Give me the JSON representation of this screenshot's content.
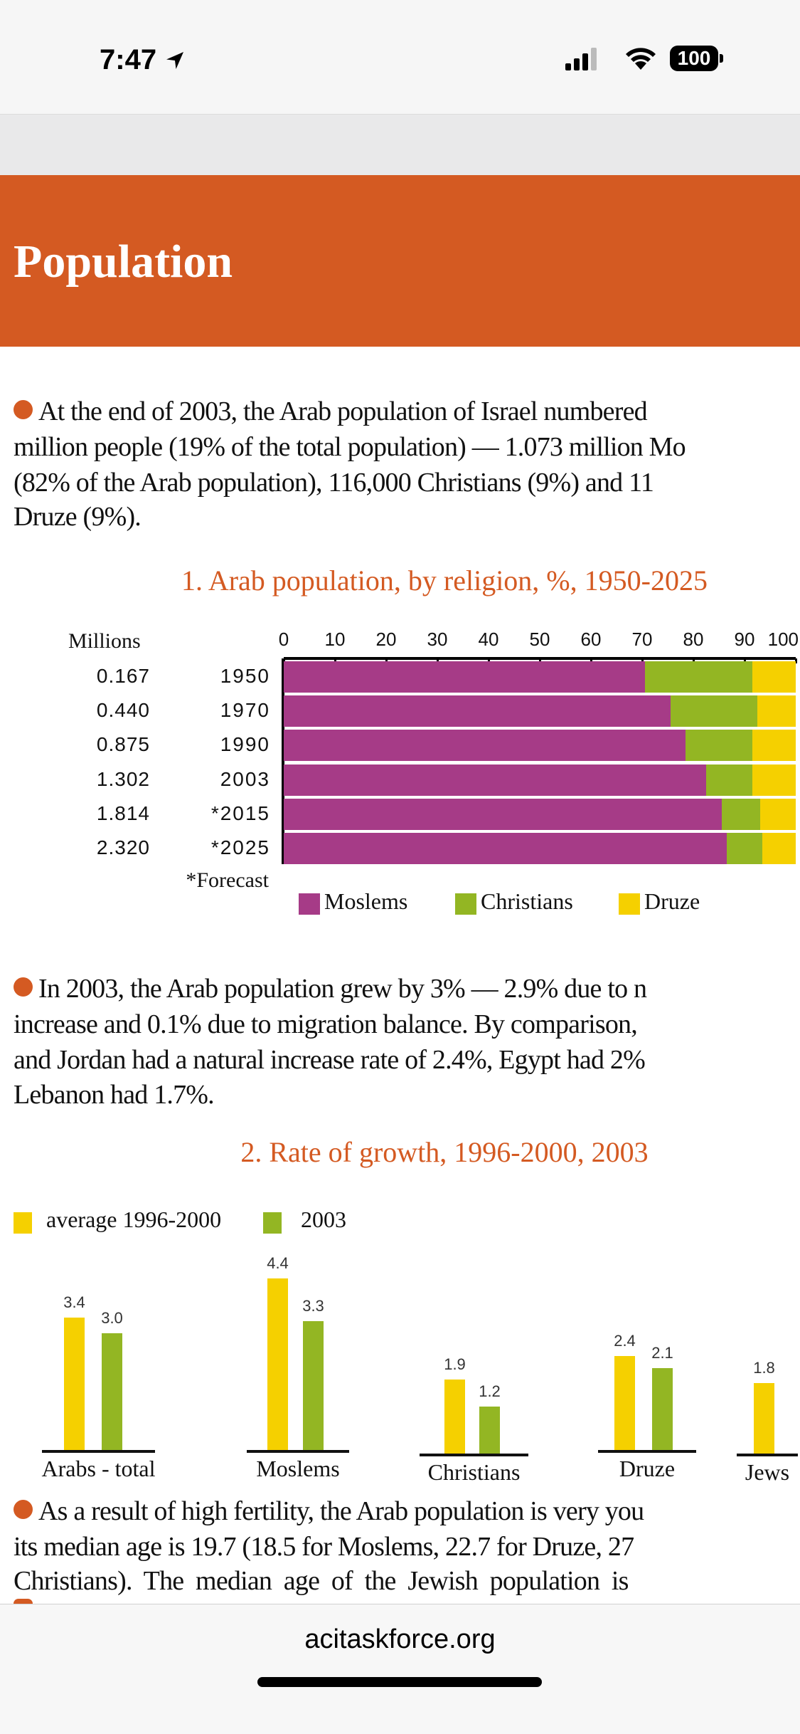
{
  "status_bar": {
    "time": "7:47",
    "battery": "100",
    "icons": [
      "location-arrow-icon",
      "signal-icon",
      "wifi-icon",
      "battery-icon"
    ]
  },
  "header": {
    "title": "Population"
  },
  "paragraph1": {
    "lines": [
      "At the end of 2003, the Arab population of Israel numbered",
      "million people (19% of the total population) — 1.073 million Mo",
      "(82% of the Arab population), 116,000 Christians (9%) and 11",
      "Druze (9%)."
    ]
  },
  "paragraph2": {
    "lines": [
      "In 2003, the Arab population grew by 3% — 2.9% due to n",
      "increase and 0.1% due to migration balance. By comparison,",
      "and Jordan had a natural increase rate of 2.4%, Egypt had 2%",
      "Lebanon had 1.7%."
    ]
  },
  "paragraph3": {
    "lines": [
      "As a result of high fertility, the Arab population is very you",
      "its median age is 19.7 (18.5 for Moslems, 22.7 for Druze, 27",
      "Christians). The median age of the Jewish population is"
    ]
  },
  "colors": {
    "accent": "#d45a22",
    "moslems": "#a63b87",
    "christians": "#93b623",
    "druze": "#f5d000"
  },
  "chart_data": [
    {
      "type": "bar",
      "orientation": "horizontal-stacked",
      "title": "1. Arab population, by religion, %, 1950-2025",
      "millions_label": "Millions",
      "footnote": "*Forecast",
      "xlim": [
        0,
        100
      ],
      "xticks": [
        "0",
        "10",
        "20",
        "30",
        "40",
        "50",
        "60",
        "70",
        "80",
        "90",
        "100"
      ],
      "categories": [
        "1950",
        "1970",
        "1990",
        "2003",
        "*2015",
        "*2025"
      ],
      "millions": [
        "0.167",
        "0.440",
        "0.875",
        "1.302",
        "1.814",
        "2.320"
      ],
      "series": [
        {
          "name": "Moslems",
          "color": "#a63b87",
          "values": [
            70.5,
            75.5,
            78.5,
            82.5,
            85.5,
            86.5
          ]
        },
        {
          "name": "Christians",
          "color": "#93b623",
          "values": [
            21.0,
            17.0,
            13.0,
            9.0,
            7.5,
            7.0
          ]
        },
        {
          "name": "Druze",
          "color": "#f5d000",
          "values": [
            8.5,
            7.5,
            8.5,
            8.5,
            7.0,
            6.5
          ]
        }
      ],
      "legend": "bottom"
    },
    {
      "type": "bar",
      "title": "2. Rate of growth, 1996-2000, 2003",
      "categories": [
        "Arabs - total",
        "Moslems",
        "Christians",
        "Druze",
        "Jews"
      ],
      "series": [
        {
          "name": "average 1996-2000",
          "color": "#f5d000",
          "values": [
            3.4,
            4.4,
            1.9,
            2.4,
            1.8
          ],
          "labels": [
            "3.4",
            "4.4",
            "1.9",
            "2.4",
            "1.8"
          ]
        },
        {
          "name": "2003",
          "color": "#93b623",
          "values": [
            3.0,
            3.3,
            1.2,
            2.1,
            null
          ],
          "labels": [
            "3.0",
            "3.3",
            "1.2",
            "2.1",
            ""
          ]
        }
      ],
      "legend": "top-left"
    }
  ],
  "browser": {
    "url": "acitaskforce.org"
  }
}
